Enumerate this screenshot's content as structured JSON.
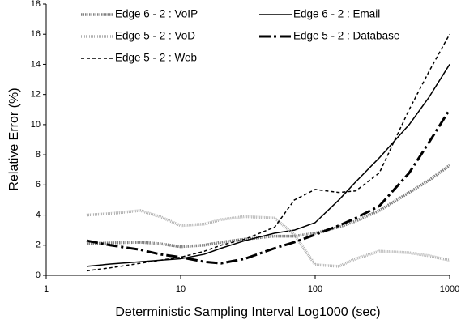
{
  "chart_data": {
    "type": "line",
    "xlabel": "Deterministic Sampling Interval Log1000 (sec)",
    "ylabel": "Relative Error (%)",
    "xscale": "log",
    "x": [
      2,
      3,
      5,
      7,
      10,
      15,
      20,
      30,
      50,
      70,
      100,
      150,
      200,
      300,
      500,
      700,
      1000
    ],
    "series": [
      {
        "name": "Edge 6 - 2 : VoIP",
        "color": "#808080",
        "values": [
          2.1,
          2.15,
          2.2,
          2.1,
          1.9,
          2.0,
          2.2,
          2.4,
          2.6,
          2.6,
          2.8,
          3.2,
          3.6,
          4.3,
          5.5,
          6.3,
          7.3
        ]
      },
      {
        "name": "Edge 6 - 2 : Email",
        "color": "#000000",
        "values": [
          0.6,
          0.75,
          0.9,
          1.0,
          1.1,
          1.4,
          1.8,
          2.3,
          2.8,
          3.0,
          3.5,
          5.0,
          6.2,
          7.8,
          10.0,
          11.8,
          14.0
        ]
      },
      {
        "name": "Edge 5 - 2 : VoD",
        "color": "#b0b0b0",
        "values": [
          4.0,
          4.1,
          4.3,
          3.9,
          3.3,
          3.4,
          3.7,
          3.9,
          3.8,
          2.7,
          0.7,
          0.6,
          1.1,
          1.6,
          1.5,
          1.3,
          1.0
        ]
      },
      {
        "name": "Edge 5 - 2 : Database",
        "color": "#000000",
        "values": [
          2.3,
          2.0,
          1.7,
          1.4,
          1.2,
          0.9,
          0.8,
          1.1,
          1.8,
          2.2,
          2.7,
          3.3,
          3.8,
          4.6,
          6.8,
          8.8,
          11.0
        ]
      },
      {
        "name": "Edge 5 - 2 : Web",
        "color": "#000000",
        "values": [
          0.3,
          0.5,
          0.8,
          1.0,
          1.2,
          1.6,
          2.0,
          2.4,
          3.2,
          5.0,
          5.7,
          5.5,
          5.6,
          6.8,
          11.0,
          13.5,
          16.0
        ]
      }
    ],
    "xlim": [
      1,
      1000
    ],
    "xticks": [
      1,
      10,
      100,
      1000
    ],
    "ylim": [
      0,
      18
    ],
    "yticks": [
      0,
      2,
      4,
      6,
      8,
      10,
      12,
      14,
      16,
      18
    ],
    "grid": false,
    "legend": "top"
  }
}
